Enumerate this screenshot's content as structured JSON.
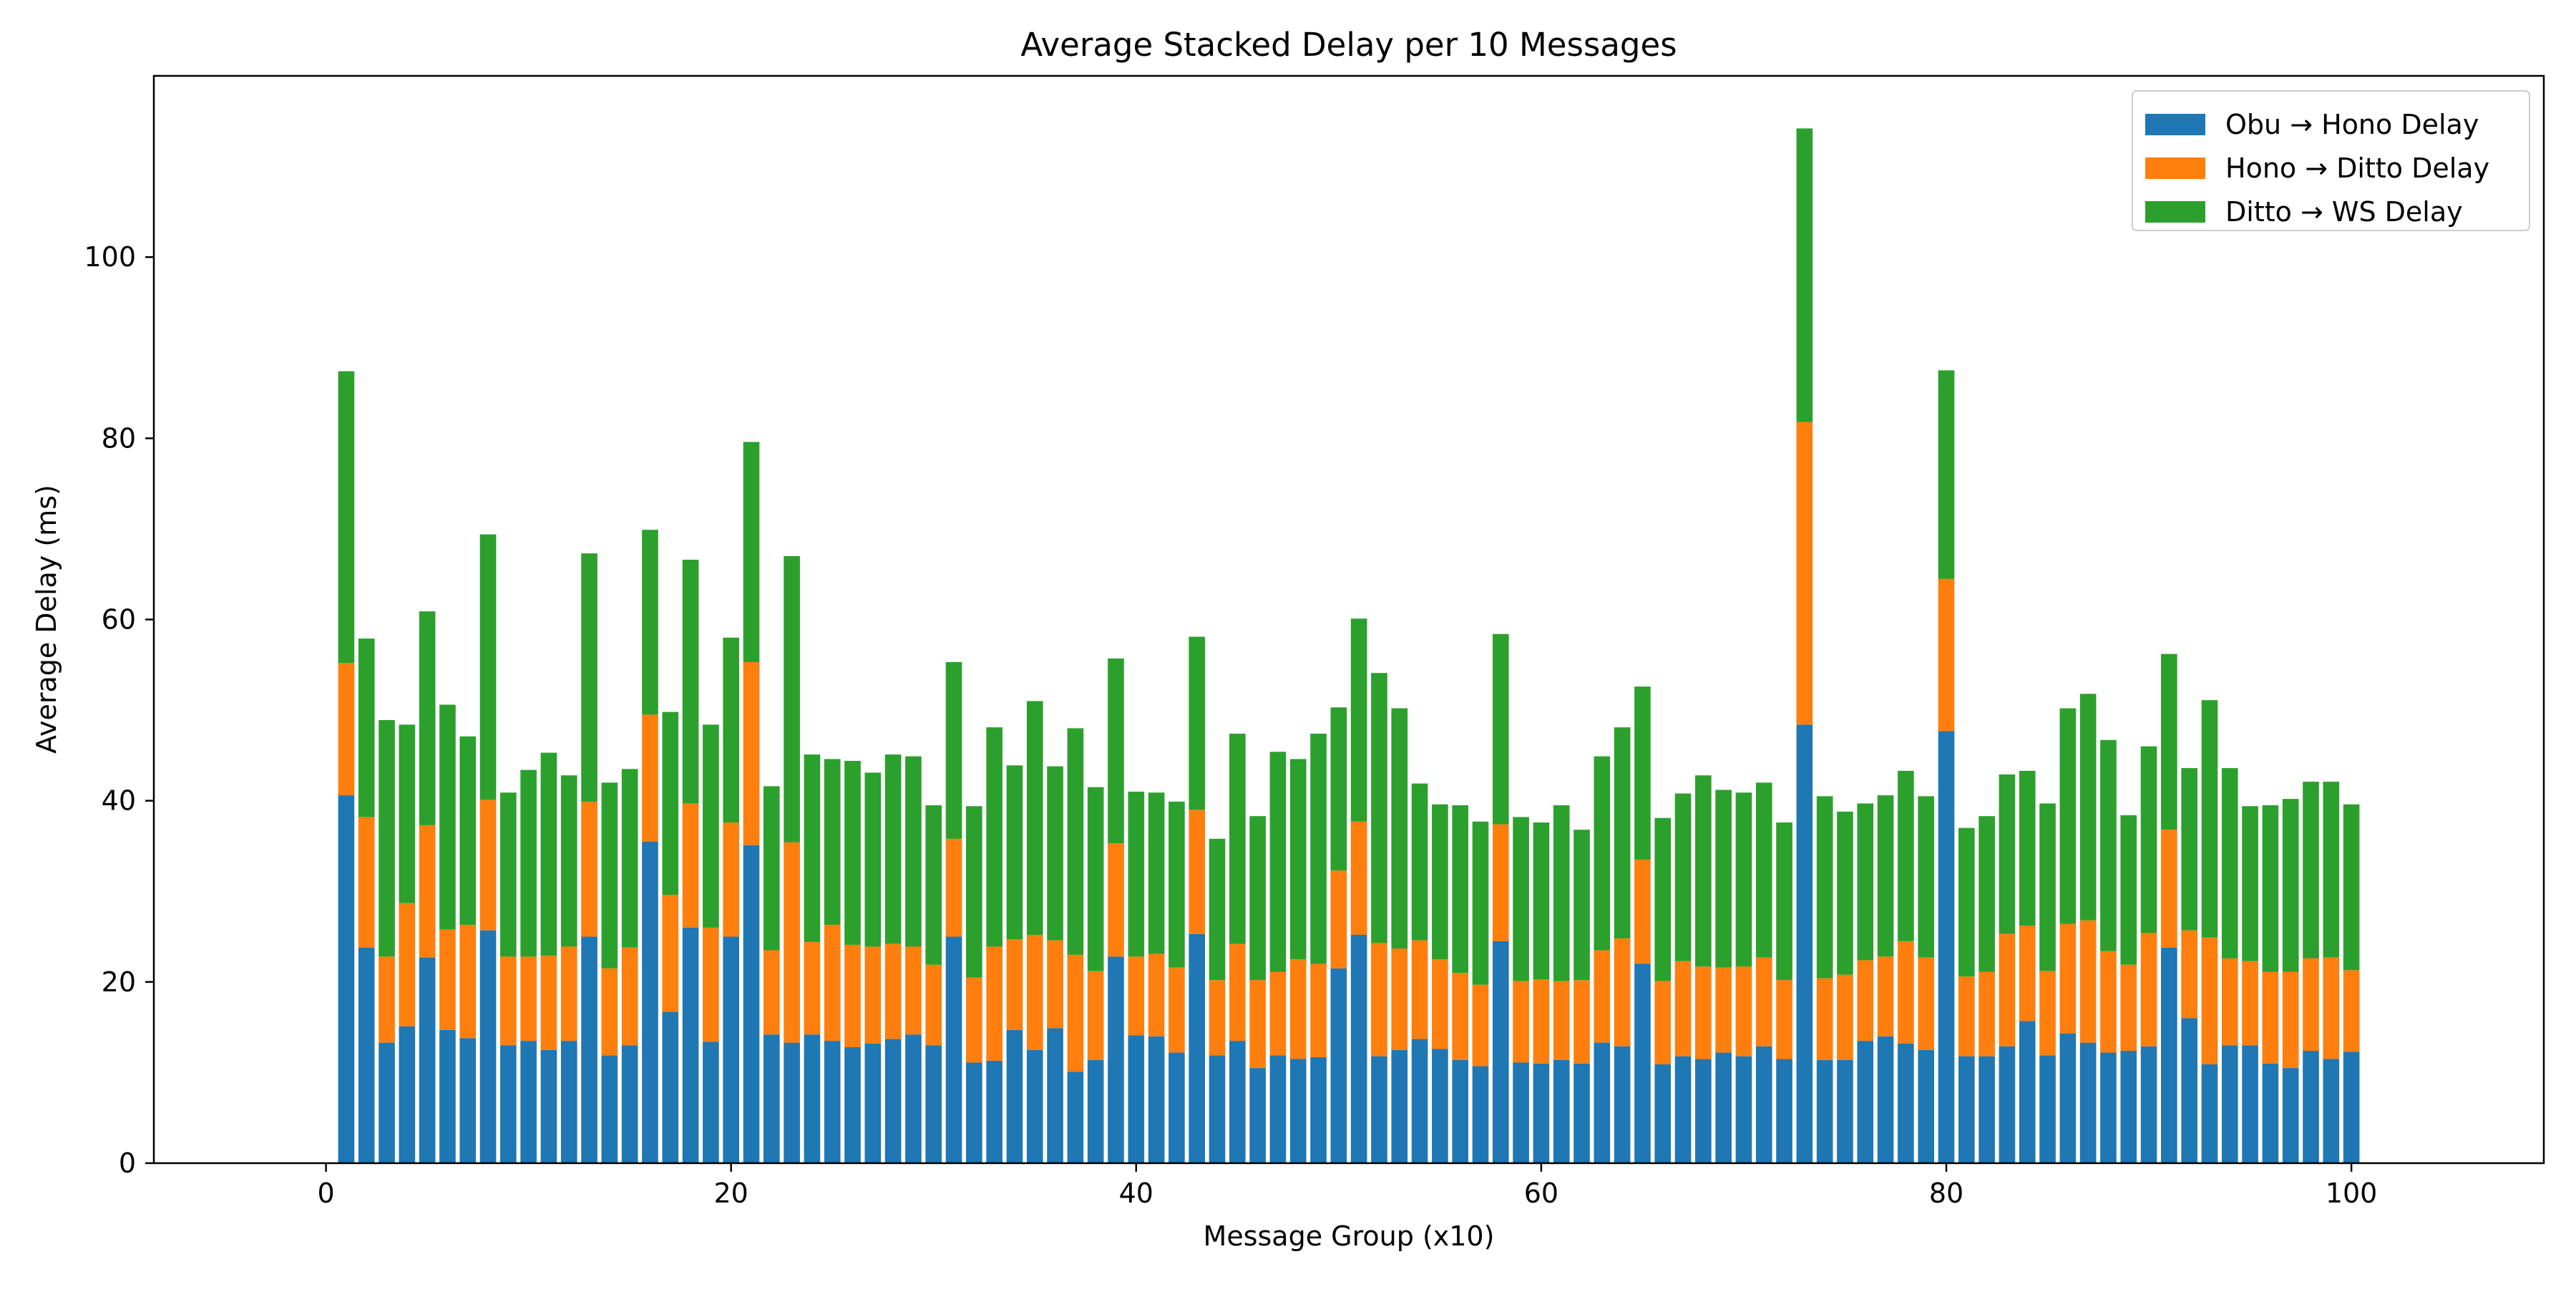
{
  "chart_data": {
    "type": "bar",
    "stacked": true,
    "title": "Average Stacked Delay per 10 Messages",
    "xlabel": "Message Group (x10)",
    "ylabel": "Average Delay (ms)",
    "xlim": [
      -8.5,
      109.5
    ],
    "ylim": [
      0,
      120
    ],
    "xticks": [
      0,
      20,
      40,
      60,
      80,
      100
    ],
    "yticks": [
      0,
      20,
      40,
      60,
      80,
      100
    ],
    "grid": false,
    "legend_position": "top-right",
    "x": [
      1,
      2,
      3,
      4,
      5,
      6,
      7,
      8,
      9,
      10,
      11,
      12,
      13,
      14,
      15,
      16,
      17,
      18,
      19,
      20,
      21,
      22,
      23,
      24,
      25,
      26,
      27,
      28,
      29,
      30,
      31,
      32,
      33,
      34,
      35,
      36,
      37,
      38,
      39,
      40,
      41,
      42,
      43,
      44,
      45,
      46,
      47,
      48,
      49,
      50,
      51,
      52,
      53,
      54,
      55,
      56,
      57,
      58,
      59,
      60,
      61,
      62,
      63,
      64,
      65,
      66,
      67,
      68,
      69,
      70,
      71,
      72,
      73,
      74,
      75,
      76,
      77,
      78,
      79,
      80,
      81,
      82,
      83,
      84,
      85,
      86,
      87,
      88,
      89,
      90,
      91,
      92,
      93,
      94,
      95,
      96,
      97,
      98,
      99,
      100
    ],
    "series": [
      {
        "name": "Obu → Hono Delay",
        "color": "#1f77b4",
        "values": [
          40.6,
          23.8,
          13.3,
          15.1,
          22.7,
          14.7,
          13.8,
          25.7,
          13.0,
          13.5,
          12.5,
          13.5,
          25.0,
          11.9,
          13.0,
          35.5,
          16.7,
          26.0,
          13.4,
          25.0,
          35.1,
          14.2,
          13.3,
          14.2,
          13.5,
          12.8,
          13.2,
          13.7,
          14.2,
          13.0,
          25.0,
          11.1,
          11.3,
          14.7,
          12.5,
          14.9,
          10.1,
          11.4,
          22.8,
          14.1,
          14.0,
          12.2,
          25.3,
          11.9,
          13.5,
          10.5,
          11.9,
          11.5,
          11.7,
          21.5,
          25.2,
          11.8,
          12.5,
          13.7,
          12.6,
          11.4,
          10.7,
          24.5,
          11.1,
          11.0,
          11.4,
          11.0,
          13.3,
          12.9,
          22.0,
          10.9,
          11.8,
          11.5,
          12.2,
          11.8,
          12.9,
          11.5,
          48.4,
          11.4,
          11.4,
          13.5,
          14.0,
          13.2,
          12.5,
          47.7,
          11.8,
          11.8,
          12.9,
          15.7,
          11.9,
          14.3,
          13.3,
          12.2,
          12.4,
          12.9,
          23.8,
          16.0,
          10.9,
          13.0,
          13.0,
          11.0,
          10.5,
          12.4,
          11.5,
          12.3
        ]
      },
      {
        "name": "Hono → Ditto Delay",
        "color": "#ff7f0e",
        "values": [
          14.6,
          14.4,
          9.5,
          13.6,
          14.6,
          11.1,
          12.5,
          14.4,
          9.8,
          9.3,
          10.4,
          10.4,
          14.9,
          9.6,
          10.8,
          14.0,
          12.9,
          13.7,
          12.6,
          12.6,
          20.2,
          9.3,
          22.1,
          10.2,
          12.8,
          11.3,
          10.7,
          10.5,
          9.7,
          8.9,
          10.8,
          9.4,
          12.6,
          10.0,
          12.7,
          9.7,
          12.9,
          9.8,
          12.5,
          8.7,
          9.1,
          9.4,
          13.7,
          8.3,
          10.7,
          9.7,
          9.2,
          11.0,
          10.3,
          10.8,
          12.5,
          12.5,
          11.2,
          10.9,
          9.9,
          9.6,
          9.0,
          12.9,
          9.0,
          9.3,
          8.7,
          9.2,
          10.2,
          11.9,
          11.5,
          9.2,
          10.5,
          10.2,
          9.4,
          9.9,
          9.8,
          8.7,
          33.4,
          9.0,
          9.4,
          8.9,
          8.8,
          11.3,
          10.2,
          16.8,
          8.8,
          9.3,
          12.4,
          10.5,
          9.3,
          12.1,
          13.5,
          11.2,
          9.5,
          12.5,
          13.0,
          9.7,
          14.0,
          9.6,
          9.3,
          10.1,
          10.6,
          10.2,
          11.2,
          9.0
        ]
      },
      {
        "name": "Ditto → WS Delay",
        "color": "#2ca02c",
        "values": [
          32.2,
          19.7,
          26.1,
          19.7,
          23.6,
          24.8,
          20.8,
          29.3,
          18.1,
          20.6,
          22.4,
          18.9,
          27.4,
          20.5,
          19.7,
          20.4,
          20.2,
          26.9,
          22.4,
          20.4,
          24.3,
          18.1,
          31.6,
          20.7,
          18.3,
          20.3,
          19.2,
          20.9,
          21.0,
          17.6,
          19.5,
          18.9,
          24.2,
          19.2,
          25.8,
          19.2,
          25.0,
          20.3,
          20.4,
          18.2,
          17.8,
          18.3,
          19.1,
          15.6,
          23.2,
          18.1,
          24.3,
          22.1,
          25.4,
          18.0,
          22.4,
          29.8,
          26.5,
          17.3,
          17.1,
          18.5,
          18.0,
          21.0,
          18.1,
          17.3,
          19.4,
          16.6,
          21.4,
          23.3,
          19.1,
          18.0,
          18.5,
          21.1,
          19.6,
          19.2,
          19.3,
          17.4,
          32.4,
          20.1,
          18.0,
          17.3,
          17.8,
          18.8,
          17.8,
          23.0,
          16.4,
          17.2,
          17.6,
          17.1,
          18.5,
          23.8,
          25.0,
          23.3,
          16.5,
          20.6,
          19.4,
          17.9,
          26.2,
          21.0,
          17.1,
          18.4,
          19.1,
          19.5,
          19.4,
          18.3
        ]
      }
    ]
  }
}
